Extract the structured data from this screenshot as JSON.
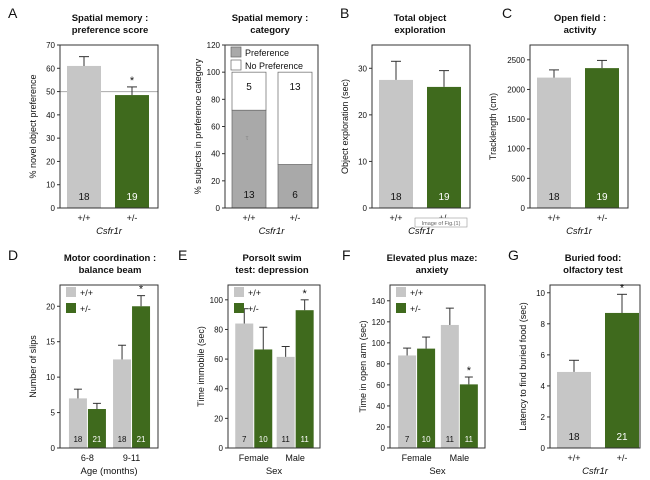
{
  "colors": {
    "wt": "#c6c6c6",
    "ko": "#3f6a1d",
    "pref": "#a9a9a9",
    "nopref": "#ffffff",
    "axis": "#333333",
    "refline": "#aaaaaa"
  },
  "chart_data": [
    {
      "panel": "A",
      "type": "bar",
      "title": [
        "Spatial memory :",
        "preference score"
      ],
      "ylabel": "% novel object preference",
      "xlabel": "Csfr1r",
      "categories": [
        "+/+",
        "+/-"
      ],
      "ylim": [
        0,
        70
      ],
      "yticks": [
        0,
        10,
        20,
        30,
        40,
        50,
        60,
        70
      ],
      "values": [
        61,
        48.5
      ],
      "errors": [
        4,
        3.5
      ],
      "n": [
        "18",
        "19"
      ],
      "sig": [
        "",
        "*"
      ],
      "refline": 50
    },
    {
      "panel": "",
      "type": "bar",
      "stacked": true,
      "title": [
        "Spatial memory :",
        "category"
      ],
      "ylabel": "% subjects in preference category",
      "xlabel": "Csfr1r",
      "categories": [
        "+/+",
        "+/-"
      ],
      "ylim": [
        0,
        120
      ],
      "yticks": [
        0,
        20,
        40,
        60,
        80,
        100,
        120
      ],
      "legend": [
        "Preference",
        "No Preference"
      ],
      "series": [
        {
          "name": "Preference",
          "values": [
            72,
            32
          ],
          "labels": [
            "13",
            "6"
          ]
        },
        {
          "name": "No Preference",
          "values": [
            28,
            68
          ],
          "labels": [
            "5",
            "13"
          ]
        }
      ]
    },
    {
      "panel": "B",
      "type": "bar",
      "title": [
        "Total object",
        "exploration"
      ],
      "ylabel": "Object exploration (sec)",
      "xlabel": "Csfr1r",
      "categories": [
        "+/+",
        "+/-"
      ],
      "ylim": [
        0,
        35
      ],
      "yticks": [
        0,
        10,
        20,
        30
      ],
      "values": [
        27.5,
        26
      ],
      "errors": [
        4,
        3.5
      ],
      "n": [
        "18",
        "19"
      ],
      "sig": [
        "",
        ""
      ],
      "watermark": "Image of Fig.(1)"
    },
    {
      "panel": "C",
      "type": "bar",
      "title": [
        "Open field :",
        "activity"
      ],
      "ylabel": "Tracklength (cm)",
      "xlabel": "Csfr1r",
      "categories": [
        "+/+",
        "+/-"
      ],
      "ylim": [
        0,
        2750
      ],
      "yticks": [
        0,
        500,
        1000,
        1500,
        2000,
        2500
      ],
      "values": [
        2200,
        2360
      ],
      "errors": [
        130,
        130
      ],
      "n": [
        "18",
        "19"
      ],
      "sig": [
        "",
        ""
      ]
    },
    {
      "panel": "D",
      "type": "bar",
      "title": [
        "Motor coordination :",
        "balance beam"
      ],
      "ylabel": "Number of slips",
      "xlabel": "Age (months)",
      "categories": [
        "6-8",
        "9-11"
      ],
      "ylim": [
        0,
        23
      ],
      "yticks": [
        0,
        5,
        10,
        15,
        20
      ],
      "legend": [
        "+/+",
        "+/-"
      ],
      "series": [
        {
          "name": "+/+",
          "values": [
            7,
            12.5
          ],
          "errors": [
            1.3,
            2
          ],
          "n": [
            "18",
            "18"
          ],
          "sig": [
            "",
            ""
          ]
        },
        {
          "name": "+/-",
          "values": [
            5.5,
            20
          ],
          "errors": [
            0.8,
            1.5
          ],
          "n": [
            "21",
            "21"
          ],
          "sig": [
            "",
            "*"
          ]
        }
      ]
    },
    {
      "panel": "E",
      "type": "bar",
      "title": [
        "Porsolt swim",
        "test: depression"
      ],
      "ylabel": "Time immobile (sec)",
      "xlabel": "Sex",
      "categories": [
        "Female",
        "Male"
      ],
      "ylim": [
        0,
        110
      ],
      "yticks": [
        0,
        20,
        40,
        60,
        80,
        100
      ],
      "legend": [
        "+/+",
        "+/-"
      ],
      "series": [
        {
          "name": "+/+",
          "values": [
            84,
            61.5
          ],
          "errors": [
            10,
            7
          ],
          "n": [
            "7",
            "11"
          ],
          "sig": [
            "",
            ""
          ]
        },
        {
          "name": "+/-",
          "values": [
            66.5,
            93
          ],
          "errors": [
            15,
            7
          ],
          "n": [
            "10",
            "11"
          ],
          "sig": [
            "",
            "*"
          ]
        }
      ]
    },
    {
      "panel": "F",
      "type": "bar",
      "title": [
        "Elevated plus maze:",
        "anxiety"
      ],
      "ylabel": "Time in open arm (sec)",
      "xlabel": "Sex",
      "categories": [
        "Female",
        "Male"
      ],
      "ylim": [
        0,
        155
      ],
      "yticks": [
        0,
        20,
        40,
        60,
        80,
        100,
        120,
        140
      ],
      "legend": [
        "+/+",
        "+/-"
      ],
      "series": [
        {
          "name": "+/+",
          "values": [
            88,
            117
          ],
          "errors": [
            7,
            16
          ],
          "n": [
            "7",
            "11"
          ],
          "sig": [
            "",
            ""
          ]
        },
        {
          "name": "+/-",
          "values": [
            94.5,
            60.5
          ],
          "errors": [
            11,
            7
          ],
          "n": [
            "10",
            "11"
          ],
          "sig": [
            "",
            "*"
          ]
        }
      ]
    },
    {
      "panel": "G",
      "type": "bar",
      "title": [
        "Buried food:",
        "olfactory test"
      ],
      "ylabel": "Latency to find buried food (sec)",
      "xlabel": "Csfr1r",
      "categories": [
        "+/+",
        "+/-"
      ],
      "ylim": [
        0,
        10.5
      ],
      "yticks": [
        0,
        2,
        4,
        6,
        8,
        10
      ],
      "values": [
        4.9,
        8.7
      ],
      "errors": [
        0.75,
        1.2
      ],
      "n": [
        "18",
        "21"
      ],
      "sig": [
        "",
        "*"
      ]
    }
  ]
}
